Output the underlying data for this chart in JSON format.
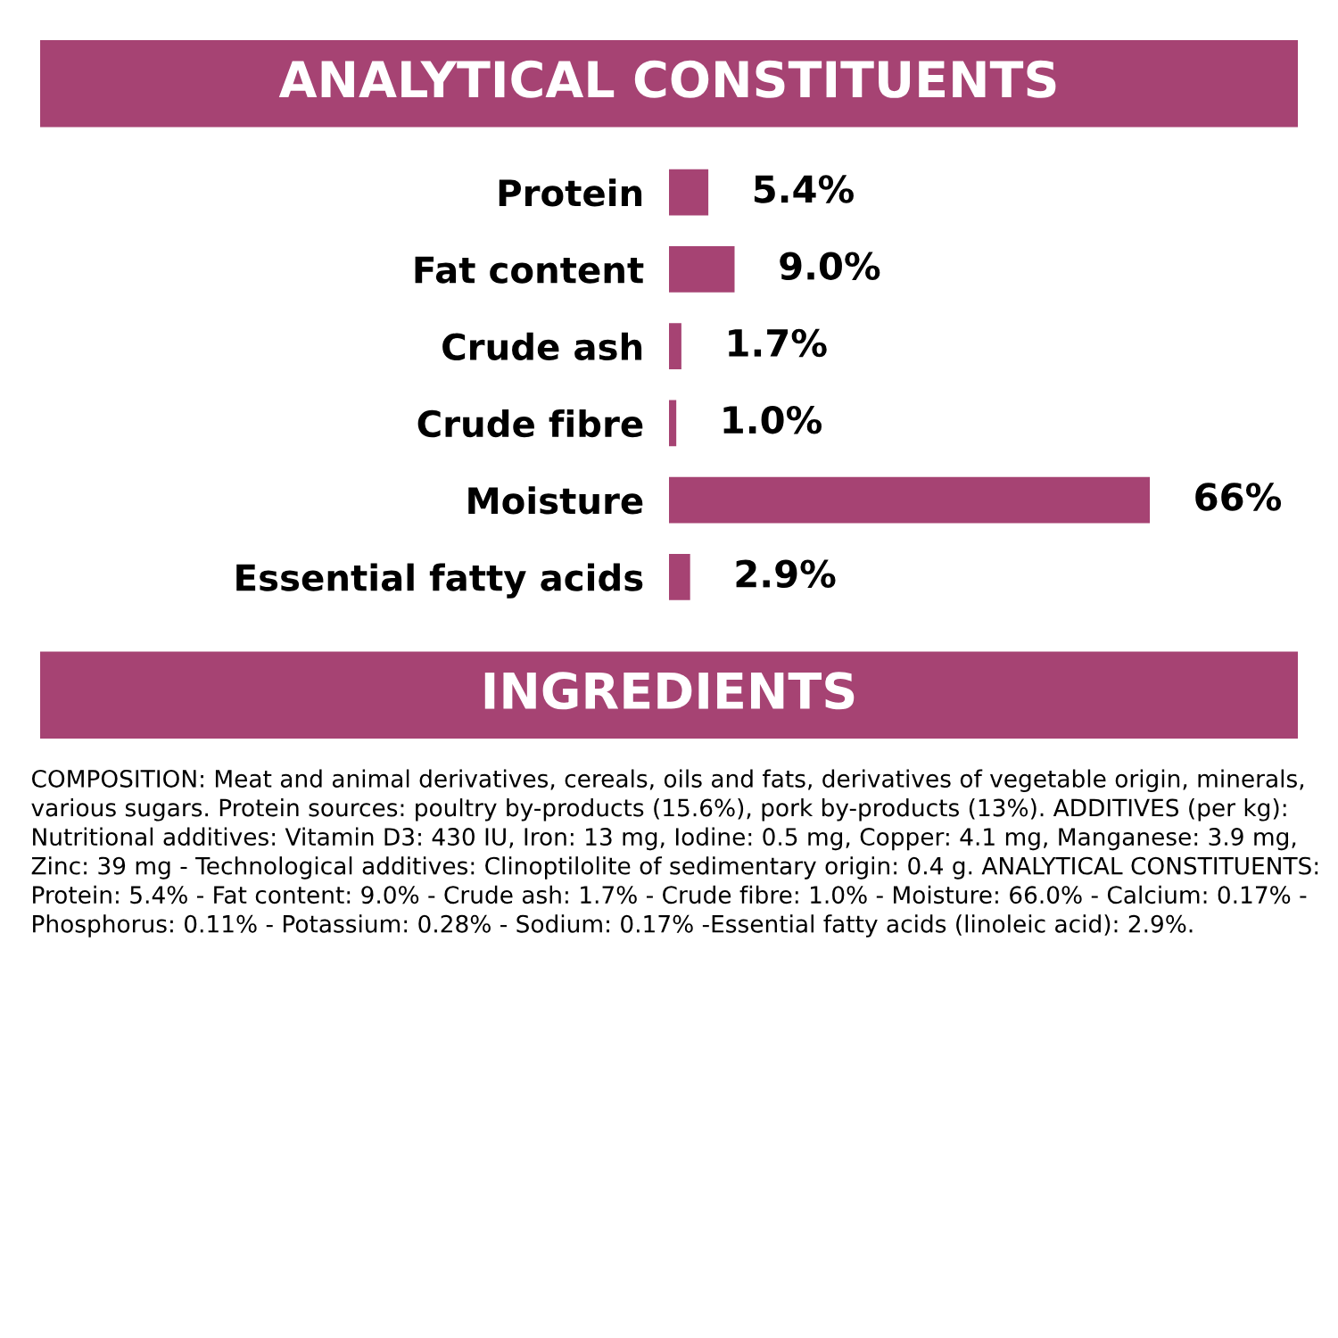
{
  "chart_data": {
    "type": "bar",
    "orientation": "horizontal",
    "title": "ANALYTICAL CONSTITUENTS",
    "categories": [
      "Protein",
      "Fat content",
      "Crude ash",
      "Crude fibre",
      "Moisture",
      "Essential fatty acids"
    ],
    "values": [
      5.4,
      9.0,
      1.7,
      1.0,
      66,
      2.9
    ],
    "value_labels": [
      "5.4%",
      "9.0%",
      "1.7%",
      "1.0%",
      "66%",
      "2.9%"
    ],
    "color": "#a64373",
    "annotations": [
      "INGREDIENTS",
      "COMPOSITION: Meat and animal derivatives, cereals, oils and fats, derivatives of vegetable origin, minerals, various sugars. Protein sources: poultry by-products (15.6%), pork by-products (13%). ADDITIVES (per kg): Nutritional additives: Vitamin D3: 430 IU, Iron: 13 mg, Iodine: 0.5 mg, Copper: 4.1 mg, Manganese: 3.9 mg, Zinc: 39 mg - Technological additives: Clinoptilolite of sedimentary origin: 0.4 g. ANALYTICAL CONSTITUENTS: Protein: 5.4% - Fat content: 9.0% - Crude ash: 1.7% - Crude fibre: 1.0% - Moisture: 66.0% - Calcium: 0.17% - Phosphorus: 0.11% - Potassium: 0.28% - Sodium: 0.17% -Essential fatty acids (linoleic acid): 2.9%."
    ]
  }
}
